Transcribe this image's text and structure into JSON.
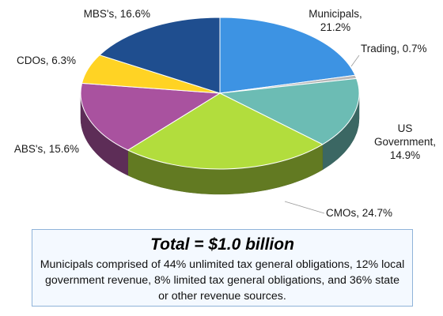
{
  "chart_data": {
    "type": "pie",
    "style": "3d",
    "title": "",
    "slices": [
      {
        "label": "Municipals",
        "value": 21.2,
        "display": "Municipals,|21.2%",
        "color": "#3d93e3"
      },
      {
        "label": "Trading",
        "value": 0.7,
        "display": "Trading, 0.7%",
        "color": "#b8b8b8"
      },
      {
        "label": "US Government",
        "value": 14.9,
        "display": "US|Government,|14.9%",
        "color": "#6cbcb4"
      },
      {
        "label": "CMOs",
        "value": 24.7,
        "display": "CMOs, 24.7%",
        "color": "#b2dd3d"
      },
      {
        "label": "ABS's",
        "value": 15.6,
        "display": "ABS's, 15.6%",
        "color": "#a9529f"
      },
      {
        "label": "CDOs",
        "value": 6.3,
        "display": "CDOs, 6.3%",
        "color": "#ffd324"
      },
      {
        "label": "MBS's",
        "value": 16.6,
        "display": "MBS's, 16.6%",
        "color": "#1f4e8f"
      }
    ]
  },
  "summary": {
    "total": "Total = $1.0 billion",
    "note": "Municipals comprised of 44% unlimited tax general obligations, 12% local government revenue, 8% limited tax general obligations, and 36% state or other revenue sources."
  }
}
